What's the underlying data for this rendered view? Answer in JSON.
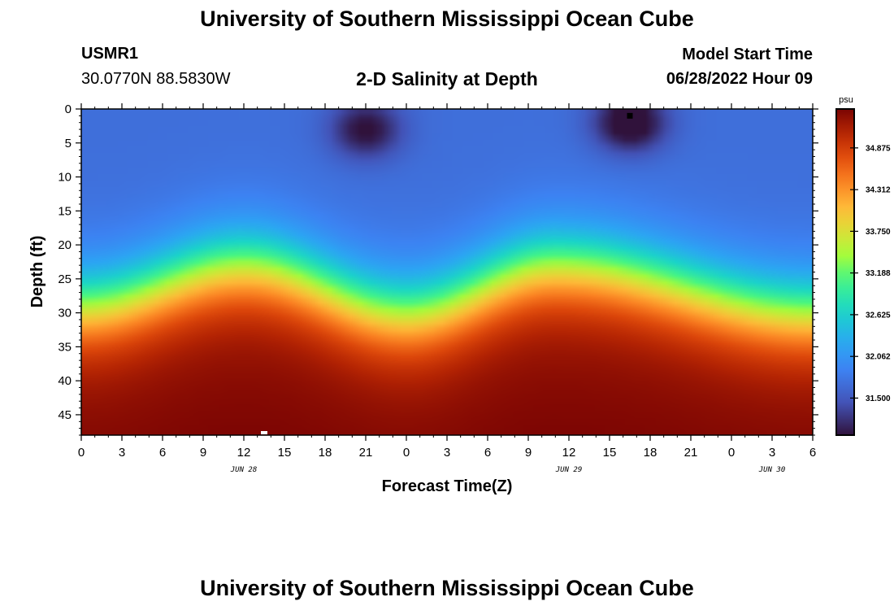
{
  "page": {
    "title": "University of Southern Mississippi Ocean Cube",
    "footer_title": "University of Southern Mississippi Ocean Cube",
    "station_id": "USMR1",
    "coordinates": "30.0770N  88.5830W",
    "subtitle": "2-D Salinity at Depth",
    "model_start_label": "Model Start Time",
    "model_start_value": "06/28/2022 Hour 09"
  },
  "chart_data": {
    "type": "heatmap",
    "title": "2-D Salinity at Depth",
    "xlabel": "Forecast Time(Z)",
    "ylabel": "Depth (ft)",
    "xlim": [
      0,
      54
    ],
    "ylim": [
      0,
      48
    ],
    "x_ticks": [
      0,
      3,
      6,
      9,
      12,
      15,
      18,
      21,
      24,
      27,
      30,
      33,
      36,
      39,
      42,
      45,
      48,
      51,
      54
    ],
    "x_tick_labels": [
      "0",
      "3",
      "6",
      "9",
      "12",
      "15",
      "18",
      "21",
      "0",
      "3",
      "6",
      "9",
      "12",
      "15",
      "18",
      "21",
      "0",
      "3",
      "6"
    ],
    "y_ticks": [
      0,
      5,
      10,
      15,
      20,
      25,
      30,
      35,
      40,
      45
    ],
    "y_tick_labels": [
      "0",
      "5",
      "10",
      "15",
      "20",
      "25",
      "30",
      "35",
      "40",
      "45"
    ],
    "date_labels": [
      {
        "x": 12,
        "label": "JUN 28"
      },
      {
        "x": 36,
        "label": "JUN 29"
      },
      {
        "x": 51,
        "label": "JUN 30"
      }
    ],
    "colorbar": {
      "unit": "psu",
      "min": 31.0,
      "max": 35.4,
      "ticks": [
        31.5,
        32.062,
        32.625,
        33.188,
        33.75,
        34.312,
        34.875
      ],
      "tick_labels": [
        "31.500",
        "32.062",
        "32.625",
        "33.188",
        "33.750",
        "34.312",
        "34.875"
      ]
    },
    "pattern": {
      "description": "Halocline depth oscillates over time; fresher water near surface, saltier water at depth",
      "halocline_depth_ft_at_hours": [
        {
          "hour": 0,
          "depth": 29
        },
        {
          "hour": 12,
          "depth": 23
        },
        {
          "hour": 24,
          "depth": 30
        },
        {
          "hour": 35,
          "depth": 23
        },
        {
          "hour": 54,
          "depth": 30
        }
      ],
      "surface_fresh_minima": [
        {
          "hour": 21,
          "depth": 3,
          "value": 31.2
        },
        {
          "hour": 40.5,
          "depth": 2,
          "value": 31.0
        }
      ],
      "surface_salinity": 31.7,
      "bottom_salinity": 35.3
    },
    "markers": [
      {
        "type": "black-square",
        "x": 40.5,
        "y": 1
      },
      {
        "type": "white-square",
        "x": 13.5,
        "y": 48
      }
    ]
  }
}
